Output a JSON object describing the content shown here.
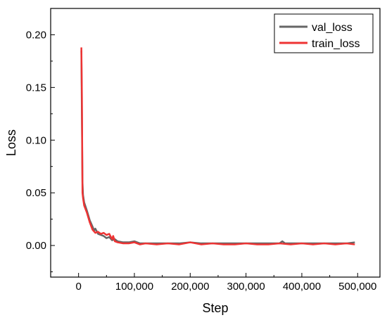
{
  "chart_data": {
    "type": "line",
    "xlabel": "Step",
    "ylabel": "Loss",
    "xlim": [
      -50000,
      540000
    ],
    "ylim": [
      -0.03,
      0.225
    ],
    "x_ticks": [
      0,
      100000,
      200000,
      300000,
      400000,
      500000
    ],
    "x_tick_labels": [
      "0",
      "100,000",
      "200,000",
      "300,000",
      "400,000",
      "500,000"
    ],
    "y_ticks": [
      0.0,
      0.05,
      0.1,
      0.15,
      0.2
    ],
    "y_tick_labels": [
      "0.00",
      "0.05",
      "0.10",
      "0.15",
      "0.20"
    ],
    "legend_position": "top-right",
    "series": [
      {
        "name": "val_loss",
        "color": "#666666",
        "points": [
          [
            5000,
            0.185
          ],
          [
            6000,
            0.12
          ],
          [
            7000,
            0.06
          ],
          [
            8000,
            0.048
          ],
          [
            10000,
            0.041
          ],
          [
            15000,
            0.033
          ],
          [
            20000,
            0.024
          ],
          [
            25000,
            0.018
          ],
          [
            28000,
            0.014
          ],
          [
            30000,
            0.016
          ],
          [
            35000,
            0.011
          ],
          [
            40000,
            0.01
          ],
          [
            45000,
            0.009
          ],
          [
            50000,
            0.007
          ],
          [
            55000,
            0.008
          ],
          [
            60000,
            0.005
          ],
          [
            65000,
            0.006
          ],
          [
            70000,
            0.004
          ],
          [
            80000,
            0.003
          ],
          [
            90000,
            0.003
          ],
          [
            100000,
            0.004
          ],
          [
            110000,
            0.002
          ],
          [
            120000,
            0.002
          ],
          [
            140000,
            0.002
          ],
          [
            160000,
            0.002
          ],
          [
            180000,
            0.002
          ],
          [
            200000,
            0.003
          ],
          [
            220000,
            0.002
          ],
          [
            240000,
            0.002
          ],
          [
            260000,
            0.002
          ],
          [
            280000,
            0.002
          ],
          [
            300000,
            0.002
          ],
          [
            320000,
            0.002
          ],
          [
            340000,
            0.002
          ],
          [
            360000,
            0.002
          ],
          [
            365000,
            0.004
          ],
          [
            370000,
            0.002
          ],
          [
            380000,
            0.002
          ],
          [
            400000,
            0.002
          ],
          [
            420000,
            0.002
          ],
          [
            440000,
            0.002
          ],
          [
            460000,
            0.002
          ],
          [
            480000,
            0.002
          ],
          [
            495000,
            0.003
          ]
        ]
      },
      {
        "name": "train_loss",
        "color": "#ee3333",
        "points": [
          [
            5000,
            0.188
          ],
          [
            6000,
            0.14
          ],
          [
            7000,
            0.05
          ],
          [
            8000,
            0.045
          ],
          [
            10000,
            0.038
          ],
          [
            15000,
            0.031
          ],
          [
            20000,
            0.022
          ],
          [
            25000,
            0.015
          ],
          [
            30000,
            0.012
          ],
          [
            35000,
            0.013
          ],
          [
            40000,
            0.011
          ],
          [
            45000,
            0.012
          ],
          [
            50000,
            0.01
          ],
          [
            55000,
            0.011
          ],
          [
            60000,
            0.006
          ],
          [
            62000,
            0.009
          ],
          [
            65000,
            0.004
          ],
          [
            70000,
            0.003
          ],
          [
            80000,
            0.002
          ],
          [
            90000,
            0.002
          ],
          [
            100000,
            0.003
          ],
          [
            110000,
            0.001
          ],
          [
            120000,
            0.002
          ],
          [
            140000,
            0.001
          ],
          [
            160000,
            0.002
          ],
          [
            180000,
            0.001
          ],
          [
            200000,
            0.003
          ],
          [
            220000,
            0.001
          ],
          [
            240000,
            0.002
          ],
          [
            260000,
            0.001
          ],
          [
            280000,
            0.001
          ],
          [
            300000,
            0.002
          ],
          [
            320000,
            0.001
          ],
          [
            340000,
            0.001
          ],
          [
            360000,
            0.002
          ],
          [
            380000,
            0.001
          ],
          [
            400000,
            0.002
          ],
          [
            420000,
            0.001
          ],
          [
            440000,
            0.002
          ],
          [
            460000,
            0.001
          ],
          [
            480000,
            0.002
          ],
          [
            495000,
            0.001
          ]
        ]
      }
    ]
  }
}
